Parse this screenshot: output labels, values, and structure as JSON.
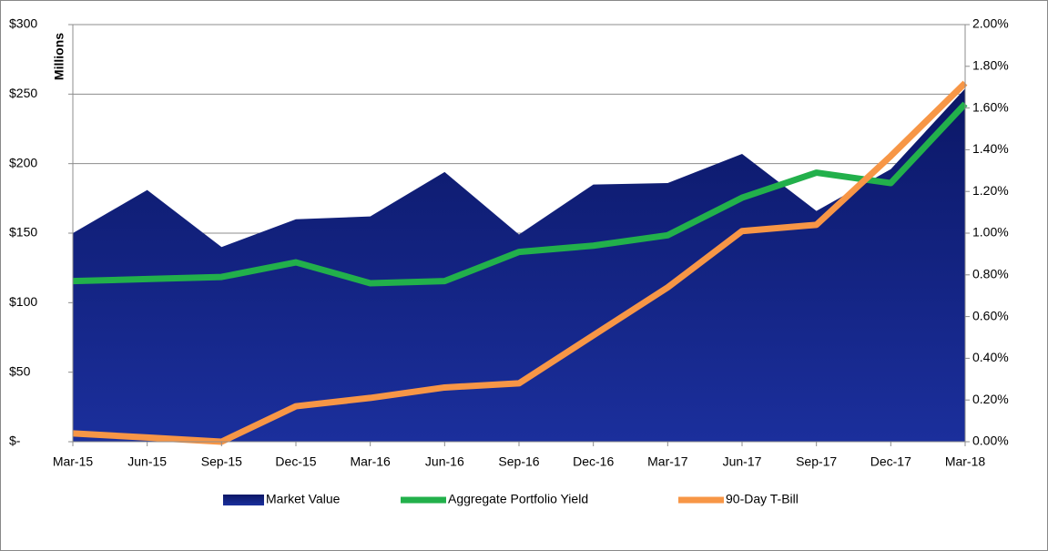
{
  "chart_data": {
    "type": "area",
    "y_axis_label": "Millions",
    "categories": [
      "Mar-15",
      "Jun-15",
      "Sep-15",
      "Dec-15",
      "Mar-16",
      "Jun-16",
      "Sep-16",
      "Dec-16",
      "Mar-17",
      "Jun-17",
      "Sep-17",
      "Dec-17",
      "Mar-18"
    ],
    "series": [
      {
        "name": "Market Value",
        "type": "area",
        "color": "#0c1c74",
        "values": [
          150,
          181,
          140,
          160,
          162,
          194,
          149,
          185,
          186,
          207,
          166,
          196,
          254
        ]
      },
      {
        "name": "Aggregate Portfolio Yield",
        "type": "line",
        "axis": "y2",
        "color": "#22b04b",
        "values": [
          0.77,
          0.78,
          0.79,
          0.86,
          0.76,
          0.77,
          0.91,
          0.94,
          0.99,
          1.17,
          1.29,
          1.24,
          1.62
        ]
      },
      {
        "name": "90-Day T-Bill",
        "type": "line",
        "axis": "y2",
        "color": "#f79646",
        "values": [
          0.04,
          0.02,
          0.0,
          0.17,
          0.21,
          0.26,
          0.28,
          0.51,
          0.74,
          1.01,
          1.04,
          1.37,
          1.72
        ]
      }
    ],
    "ylim": [
      0,
      300
    ],
    "yticks": [
      {
        "value": 0,
        "label": "$-"
      },
      {
        "value": 50,
        "label": "$50"
      },
      {
        "value": 100,
        "label": "$100"
      },
      {
        "value": 150,
        "label": "$150"
      },
      {
        "value": 200,
        "label": "$200"
      },
      {
        "value": 250,
        "label": "$250"
      },
      {
        "value": 300,
        "label": "$300"
      }
    ],
    "y2lim": [
      0,
      2
    ],
    "y2ticks": [
      {
        "value": 0,
        "label": "0.00%"
      },
      {
        "value": 0.2,
        "label": "0.20%"
      },
      {
        "value": 0.4,
        "label": "0.40%"
      },
      {
        "value": 0.6,
        "label": "0.60%"
      },
      {
        "value": 0.8,
        "label": "0.80%"
      },
      {
        "value": 1,
        "label": "1.00%"
      },
      {
        "value": 1.2,
        "label": "1.20%"
      },
      {
        "value": 1.4,
        "label": "1.40%"
      },
      {
        "value": 1.6,
        "label": "1.60%"
      },
      {
        "value": 1.8,
        "label": "1.80%"
      },
      {
        "value": 2,
        "label": "2.00%"
      }
    ],
    "grid": true,
    "legend": "bottom"
  }
}
